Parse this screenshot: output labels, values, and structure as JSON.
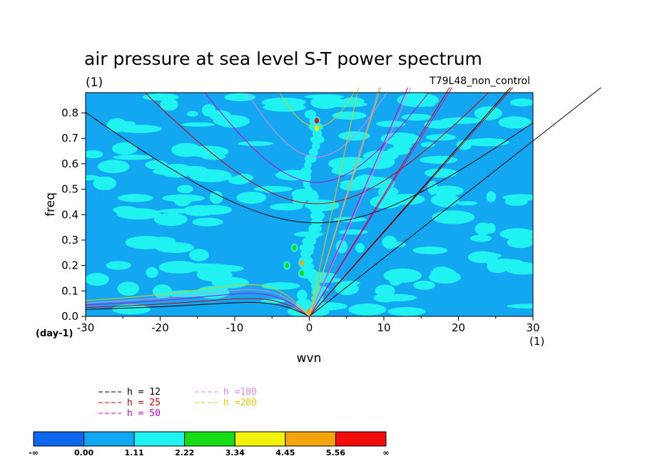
{
  "chart_data": {
    "type": "heatmap",
    "title": "air pressure at sea level S-T power spectrum",
    "subtitle_left": "(1)",
    "subtitle_right": "T79L48_non_control",
    "xlabel": "wvn",
    "ylabel": "freq",
    "x_unit_label": "(1)",
    "y_unit_label": "(day-1)",
    "xlim": [
      -30,
      30
    ],
    "ylim": [
      0,
      0.88
    ],
    "x_ticks": [
      -30,
      -20,
      -10,
      0,
      10,
      20,
      30
    ],
    "x_tick_labels": [
      "-30",
      "-20",
      "-10",
      "0",
      "10",
      "20",
      "30"
    ],
    "y_ticks": [
      0,
      0.1,
      0.2,
      0.3,
      0.4,
      0.5,
      0.6,
      0.7,
      0.8
    ],
    "y_tick_labels": [
      "0.0",
      "0.1",
      "0.2",
      "0.3",
      "0.4",
      "0.5",
      "0.6",
      "0.7",
      "0.8"
    ],
    "background_level": "0.00 to 1.11",
    "hotspots": [
      {
        "x": 1,
        "y": 0.77,
        "level": "5.56 to ∞"
      },
      {
        "x": 1,
        "y": 0.74,
        "level": "3.34 to 4.45"
      },
      {
        "x": -2,
        "y": 0.27,
        "level": "2.22 to 3.34"
      },
      {
        "x": -1,
        "y": 0.21,
        "level": "4.45 to 5.56"
      },
      {
        "x": -3,
        "y": 0.2,
        "level": "2.22 to 3.34"
      },
      {
        "x": -1,
        "y": 0.17,
        "level": "2.22 to 3.34"
      },
      {
        "x": 0,
        "y": 0.02,
        "level": "4.45 to 5.56"
      }
    ],
    "dispersion_curves": [
      {
        "name": "h = 12",
        "color": "#000000",
        "kelvin_slope": 0.023,
        "rossby_peak": 0.055,
        "gravity_min": 0.368
      },
      {
        "name": "h = 25",
        "color": "#cc0000",
        "kelvin_slope": 0.033,
        "rossby_peak": 0.07,
        "gravity_min": 0.443
      },
      {
        "name": "h = 50",
        "color": "#cc00cc",
        "kelvin_slope": 0.047,
        "rossby_peak": 0.09,
        "gravity_min": 0.527
      },
      {
        "name": "h =100",
        "color": "#dd88dd",
        "kelvin_slope": 0.066,
        "rossby_peak": 0.105,
        "gravity_min": 0.627
      },
      {
        "name": "h =200",
        "color": "#e6c800",
        "kelvin_slope": 0.094,
        "rossby_peak": 0.125,
        "gravity_min": 0.745
      }
    ]
  },
  "legend": {
    "items": [
      {
        "label": "h = 12",
        "color": "#000000"
      },
      {
        "label": "h = 25",
        "color": "#cc0000"
      },
      {
        "label": "h = 50",
        "color": "#cc00cc"
      },
      {
        "label": "h =100",
        "color": "#dd88dd"
      },
      {
        "label": "h =200",
        "color": "#e6c800"
      }
    ]
  },
  "colorbar": {
    "colors": [
      "#0d66ee",
      "#13a7f2",
      "#20f2f2",
      "#15dc15",
      "#f2f20d",
      "#f2a50d",
      "#f20d0d"
    ],
    "labels": [
      "-∞",
      "0.00",
      "1.11",
      "2.22",
      "3.34",
      "4.45",
      "5.56",
      "∞"
    ]
  }
}
